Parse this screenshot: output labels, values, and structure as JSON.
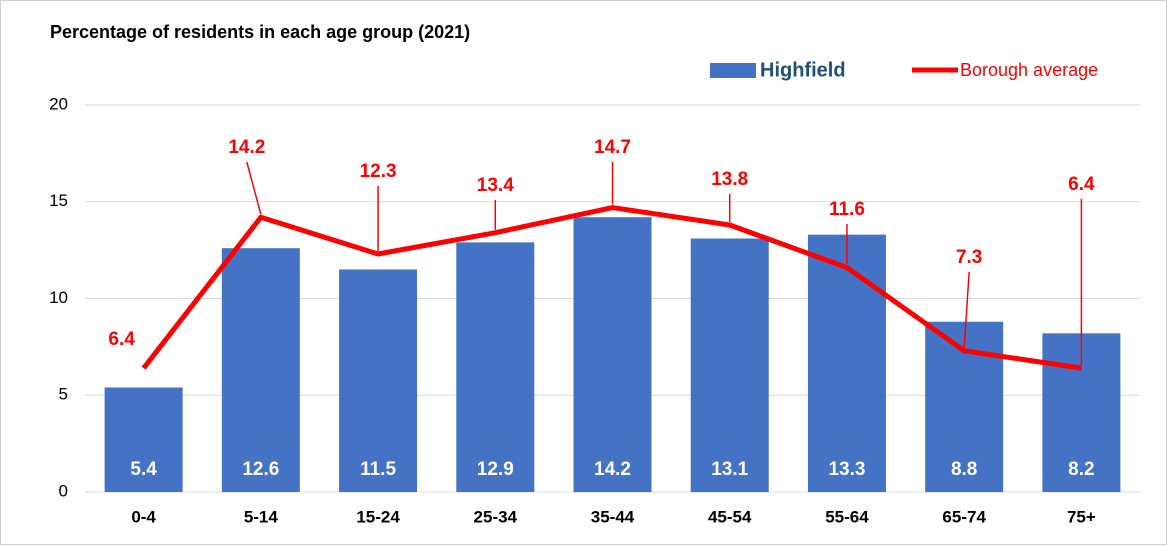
{
  "chart_data": {
    "type": "bar_line",
    "title": "Percentage of residents in each age group (2021)",
    "categories": [
      "0-4",
      "5-14",
      "15-24",
      "25-34",
      "35-44",
      "45-54",
      "55-64",
      "65-74",
      "75+"
    ],
    "series": [
      {
        "name": "Highfield",
        "type": "bar",
        "color": "#4472c4",
        "values": [
          5.4,
          12.6,
          11.5,
          12.9,
          14.2,
          13.1,
          13.3,
          8.8,
          8.2
        ]
      },
      {
        "name": "Borough average",
        "type": "line",
        "color": "#ff0000",
        "values": [
          6.4,
          14.2,
          12.3,
          13.4,
          14.7,
          13.8,
          11.6,
          7.3,
          6.4
        ]
      }
    ],
    "ylim": [
      0,
      20
    ],
    "yticks": [
      0,
      5,
      10,
      15,
      20
    ],
    "grid": true,
    "legend": "top-right"
  }
}
